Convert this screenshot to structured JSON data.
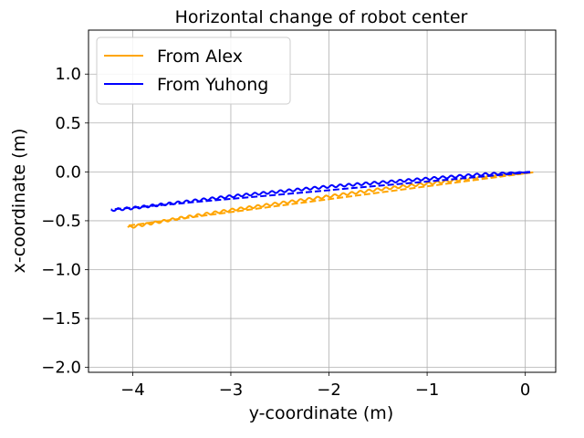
{
  "chart_data": {
    "type": "line",
    "title": "Horizontal change of robot center",
    "xlabel": "y-coordinate (m)",
    "ylabel": "x-coordinate (m)",
    "xlim": [
      -4.45,
      0.31
    ],
    "ylim": [
      -2.05,
      1.45
    ],
    "xticks": [
      -4,
      -3,
      -2,
      -1,
      0
    ],
    "xtick_labels": [
      "−4",
      "−3",
      "−2",
      "−1",
      "0"
    ],
    "yticks": [
      -2.0,
      -1.5,
      -1.0,
      -0.5,
      0.0,
      0.5,
      1.0
    ],
    "ytick_labels": [
      "−2.0",
      "−1.5",
      "−1.0",
      "−0.5",
      "0.0",
      "0.5",
      "1.0"
    ],
    "grid": true,
    "legend": {
      "placement": "upper-left"
    },
    "series": [
      {
        "name": "From Alex",
        "color": "#FFA500",
        "style": "solid-oscillating",
        "points": [
          [
            0.08,
            -0.005
          ],
          [
            -0.5,
            -0.06
          ],
          [
            -1.0,
            -0.12
          ],
          [
            -1.5,
            -0.18
          ],
          [
            -2.0,
            -0.25
          ],
          [
            -2.5,
            -0.32
          ],
          [
            -3.0,
            -0.39
          ],
          [
            -3.5,
            -0.47
          ],
          [
            -4.05,
            -0.57
          ]
        ],
        "oscillation_amplitude": 0.012,
        "oscillation_period": 0.087
      },
      {
        "name": "",
        "color": "#FFA500",
        "style": "dashed",
        "points": [
          [
            0.08,
            -0.005
          ],
          [
            -4.05,
            -0.55
          ]
        ]
      },
      {
        "name": "From Yuhong",
        "color": "#0000FF",
        "style": "solid-oscillating",
        "points": [
          [
            0.05,
            0.0
          ],
          [
            -0.5,
            -0.03
          ],
          [
            -1.0,
            -0.07
          ],
          [
            -1.5,
            -0.11
          ],
          [
            -2.0,
            -0.15
          ],
          [
            -2.5,
            -0.2
          ],
          [
            -3.0,
            -0.25
          ],
          [
            -3.5,
            -0.31
          ],
          [
            -4.0,
            -0.37
          ],
          [
            -4.22,
            -0.39
          ]
        ],
        "oscillation_amplitude": 0.012,
        "oscillation_period": 0.087
      },
      {
        "name": "",
        "color": "#0000FF",
        "style": "dashed",
        "points": [
          [
            0.05,
            -0.005
          ],
          [
            -4.22,
            -0.385
          ]
        ]
      }
    ]
  }
}
